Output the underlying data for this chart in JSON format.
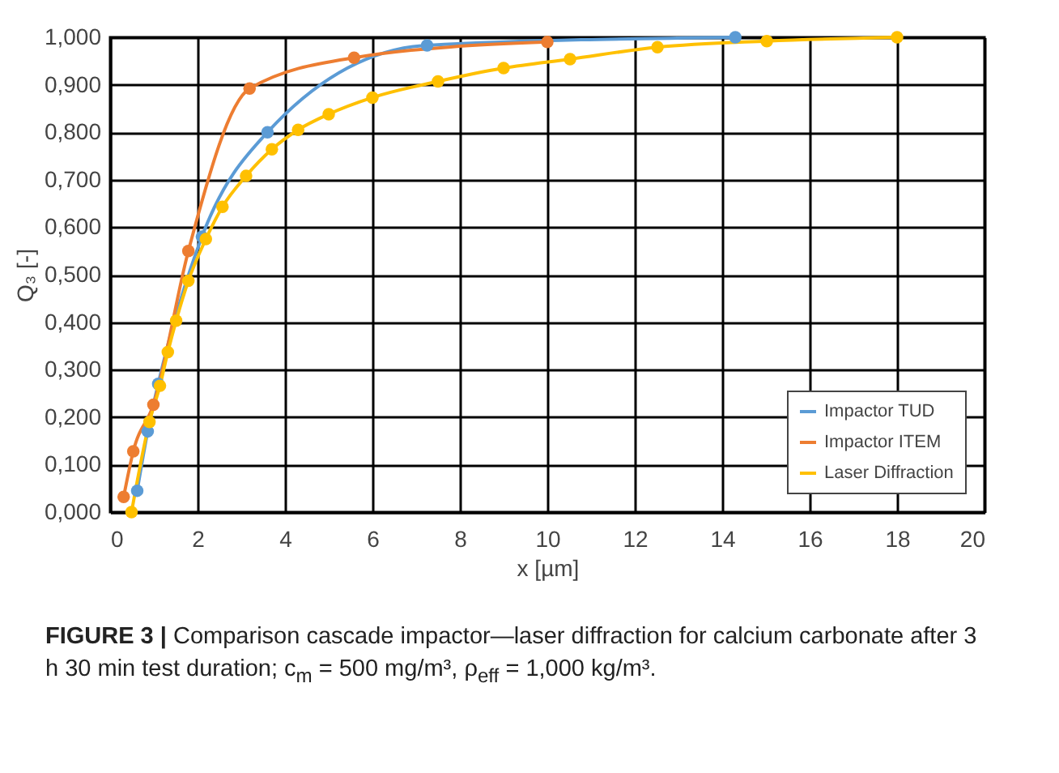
{
  "chart_data": {
    "type": "line",
    "xlabel": "x [µm]",
    "ylabel": "Q₃ [-]",
    "xlim": [
      0,
      20
    ],
    "xticks": [
      0,
      2,
      4,
      6,
      8,
      10,
      12,
      14,
      16,
      18,
      20
    ],
    "ylim": [
      0,
      1
    ],
    "yticks": [
      {
        "value": 0,
        "label": "0,000"
      },
      {
        "value": 0.1,
        "label": "0,100"
      },
      {
        "value": 0.2,
        "label": "0,200"
      },
      {
        "value": 0.3,
        "label": "0,300"
      },
      {
        "value": 0.4,
        "label": "0,400"
      },
      {
        "value": 0.5,
        "label": "0,500"
      },
      {
        "value": 0.6,
        "label": "0,600"
      },
      {
        "value": 0.7,
        "label": "0,700"
      },
      {
        "value": 0.8,
        "label": "0,800"
      },
      {
        "value": 0.9,
        "label": "0,900"
      },
      {
        "value": 1,
        "label": "1,000"
      }
    ],
    "grid": true,
    "legend": "bottom right",
    "marker": "circle",
    "line_style": "solid",
    "series": [
      {
        "name": "Impactor TUD",
        "color": "#5b9bd5",
        "x": [
          0.62,
          0.86,
          1.1,
          2.1,
          3.6,
          7.25,
          14.3
        ],
        "values": [
          0.045,
          0.17,
          0.27,
          0.58,
          0.8,
          0.983,
          1.0
        ]
      },
      {
        "name": "Impactor ITEM",
        "color": "#ed7d31",
        "x": [
          0.31,
          0.53,
          0.99,
          1.79,
          3.19,
          5.58,
          10.0
        ],
        "values": [
          0.032,
          0.128,
          0.226,
          0.55,
          0.892,
          0.957,
          0.99
        ]
      },
      {
        "name": "Laser Diffraction",
        "color": "#ffc000",
        "x": [
          0.49,
          0.9,
          1.14,
          1.32,
          1.51,
          1.79,
          2.19,
          2.57,
          3.11,
          3.7,
          4.3,
          5.0,
          6.0,
          7.5,
          9.0,
          10.52,
          12.52,
          15.02,
          18.0
        ],
        "values": [
          0.0,
          0.19,
          0.266,
          0.337,
          0.403,
          0.487,
          0.575,
          0.643,
          0.708,
          0.764,
          0.805,
          0.838,
          0.873,
          0.907,
          0.935,
          0.954,
          0.979,
          0.992,
          1.0
        ]
      }
    ],
    "annotations": [
      "FIGURE 3 | Comparison cascade impactor—laser diffraction for calcium carbonate after 3 h 30 min test duration; c$_{m}$ = 500 mg/m³, ρ$_{eff}$ = 1,000 kg/m³."
    ]
  }
}
